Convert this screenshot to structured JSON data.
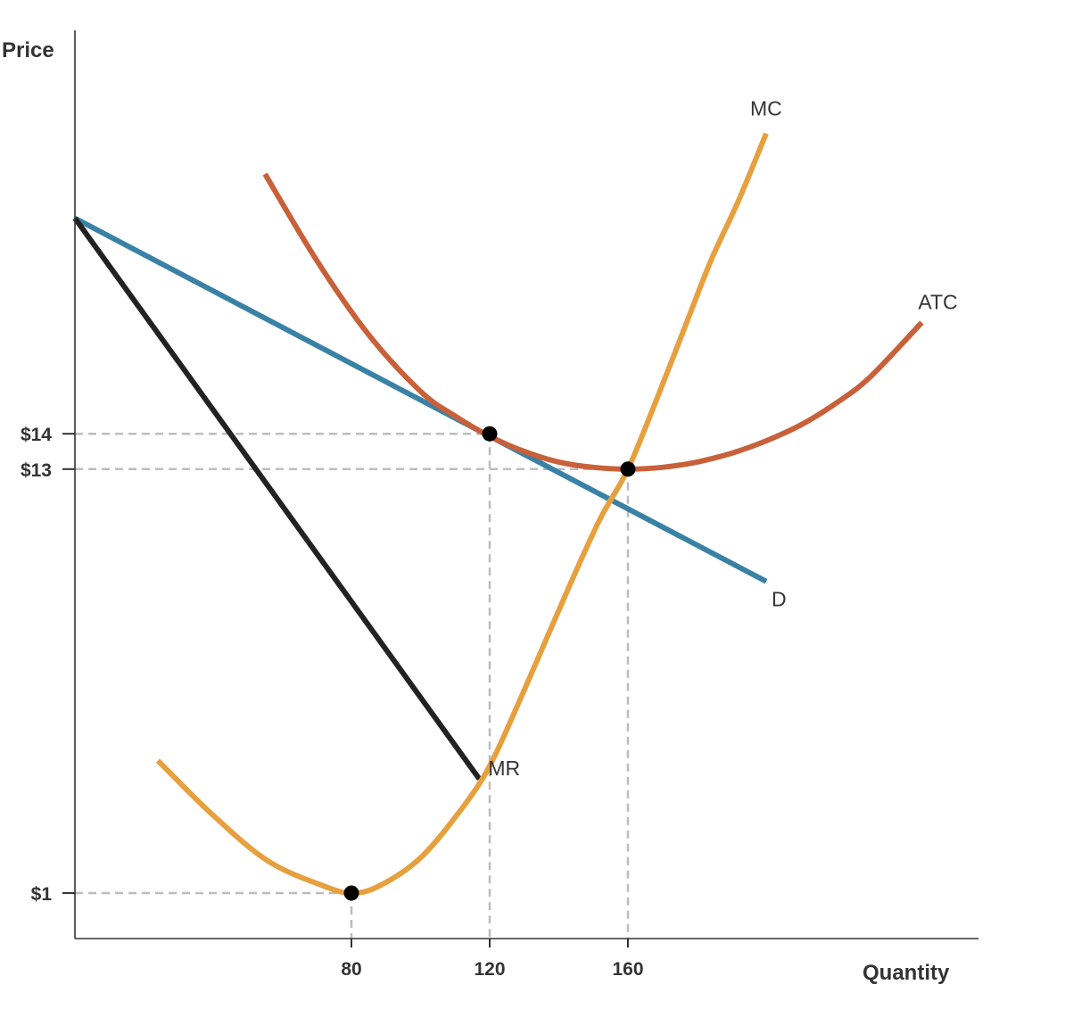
{
  "chart_data": {
    "type": "line",
    "title": "",
    "xlabel": "Quantity",
    "ylabel": "Price",
    "grid": false,
    "legend": "none",
    "x_ticks": [
      {
        "value": 80,
        "label": "80"
      },
      {
        "value": 120,
        "label": "120"
      },
      {
        "value": 160,
        "label": "160"
      }
    ],
    "y_ticks": [
      {
        "value": 14,
        "label": "$14"
      },
      {
        "value": 13,
        "label": "$13"
      },
      {
        "value": 1,
        "label": "$1"
      }
    ],
    "series": [
      {
        "name": "D",
        "color": "#3a81a6",
        "points": [
          [
            0,
            20.1
          ],
          [
            120,
            13.93
          ],
          [
            200,
            9.82
          ]
        ]
      },
      {
        "name": "MR",
        "color": "#222222",
        "points": [
          [
            0,
            20.1
          ],
          [
            117,
            4.23
          ]
        ]
      },
      {
        "name": "MC",
        "color": "#e6a03e",
        "points": [
          [
            24,
            4.75
          ],
          [
            40,
            3.2
          ],
          [
            56,
            1.9
          ],
          [
            72,
            1.2
          ],
          [
            80,
            1.0
          ],
          [
            88,
            1.2
          ],
          [
            100,
            2.0
          ],
          [
            112,
            3.4
          ],
          [
            120,
            4.6
          ],
          [
            128,
            6.3
          ],
          [
            136,
            8.1
          ],
          [
            144,
            9.9
          ],
          [
            152,
            11.6
          ],
          [
            160,
            13.0
          ],
          [
            168,
            14.9
          ],
          [
            176,
            16.9
          ],
          [
            184,
            18.9
          ],
          [
            192,
            20.6
          ],
          [
            200,
            22.5
          ]
        ]
      },
      {
        "name": "ATC",
        "color": "#c8613a",
        "points": [
          [
            55,
            21.35
          ],
          [
            70,
            18.9
          ],
          [
            85,
            16.8
          ],
          [
            100,
            15.2
          ],
          [
            110,
            14.5
          ],
          [
            120,
            13.93
          ],
          [
            130,
            13.5
          ],
          [
            140,
            13.2
          ],
          [
            150,
            13.05
          ],
          [
            160,
            13.0
          ],
          [
            170,
            13.05
          ],
          [
            180,
            13.2
          ],
          [
            190,
            13.45
          ],
          [
            200,
            13.8
          ],
          [
            210,
            14.25
          ],
          [
            220,
            14.85
          ],
          [
            230,
            15.6
          ],
          [
            245,
            17.15
          ]
        ]
      }
    ],
    "points_marked": [
      {
        "x": 80,
        "y": 1
      },
      {
        "x": 120,
        "y": 14
      },
      {
        "x": 160,
        "y": 13
      }
    ],
    "reference_lines": [
      {
        "x": 80,
        "y": 1
      },
      {
        "x": 120,
        "y": 14
      },
      {
        "x": 160,
        "y": 13
      }
    ]
  }
}
